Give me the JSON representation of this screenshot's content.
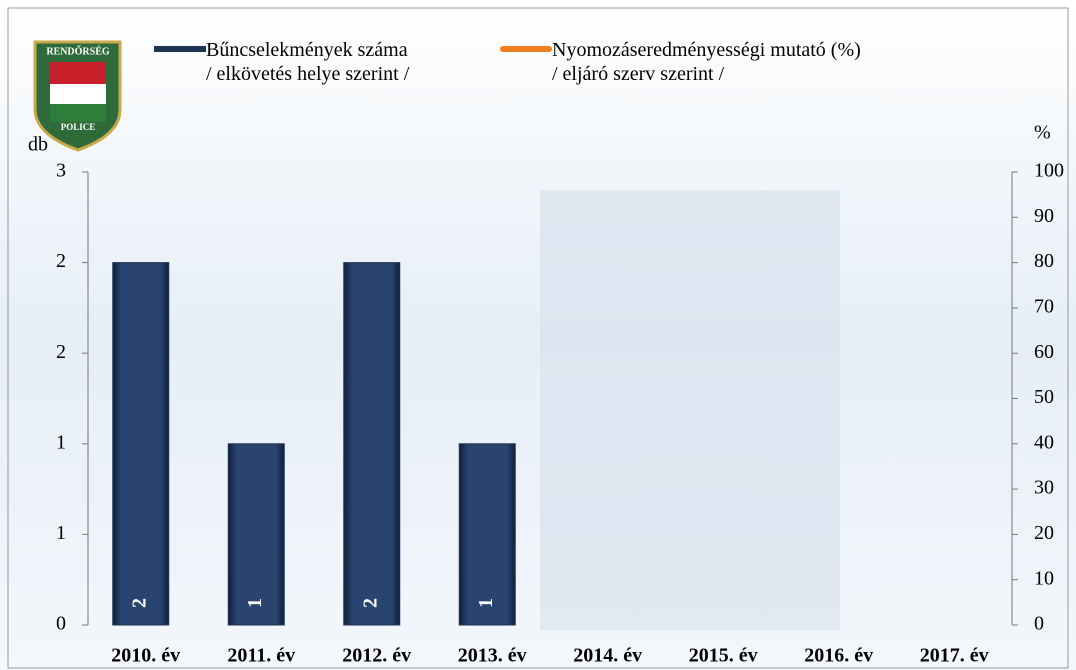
{
  "chart_data": {
    "type": "bar",
    "logo": {
      "top": "RENDŐRSÉG",
      "bottom": "POLICE"
    },
    "y_label": "db",
    "y2_label": "%",
    "categories": [
      "2010. év",
      "2011. év",
      "2012. év",
      "2013. év",
      "2014. év",
      "2015. év",
      "2016. év",
      "2017. év"
    ],
    "series": [
      {
        "name": "Bűncselekmények száma\n/ elkövetés helye szerint /",
        "color": "#1f3557",
        "type": "bar",
        "values": [
          2,
          1,
          2,
          1,
          null,
          null,
          null,
          null
        ]
      },
      {
        "name": "Nyomozáseredményességi mutató (%)\n/ eljáró szerv szerint /",
        "color": "#f07f1e",
        "type": "line",
        "axis": "y2",
        "values": [
          null,
          null,
          null,
          null,
          null,
          null,
          null,
          null
        ]
      }
    ],
    "ylim": [
      0,
      2.5
    ],
    "yticks": [
      0,
      {
        "value": 0.5,
        "label": "1"
      },
      1,
      {
        "value": 1.5,
        "label": "2"
      },
      2,
      {
        "value": 2.5,
        "label": "3"
      }
    ],
    "y2lim": [
      0,
      100
    ],
    "y2ticks": [
      0,
      10,
      20,
      30,
      40,
      50,
      60,
      70,
      80,
      90,
      100
    ]
  }
}
